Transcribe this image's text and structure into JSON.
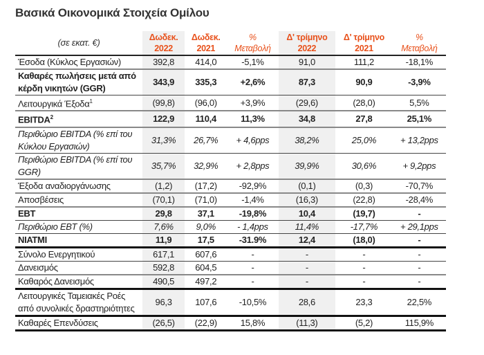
{
  "title": "Βασικά Οικονομικά Στοιχεία Ομίλου",
  "header": {
    "unit": "(σε εκατ. €)",
    "columns": [
      {
        "line1": "Δωδεκ.",
        "line2": "2022"
      },
      {
        "line1": "Δωδεκ.",
        "line2": "2021"
      },
      {
        "line1": "%",
        "line2": "Μεταβολή"
      },
      {
        "line1": "Δ' τρίμηνο",
        "line2": "2022"
      },
      {
        "line1": "Δ' τρίμηνο",
        "line2": "2021"
      },
      {
        "line1": "%",
        "line2": "Μεταβολή"
      }
    ]
  },
  "colors": {
    "accent": "#e8501a",
    "shade": "#f0f0f0"
  },
  "rows": [
    {
      "label": "Έσοδα (Κύκλος Εργασιών)",
      "values": [
        "392,8",
        "414,0",
        "-5,1%",
        "91,0",
        "111,2",
        "-18,1%"
      ],
      "style": "",
      "line": "l-gray"
    },
    {
      "label": "Καθαρές πωλήσεις μετά από κέρδη νικητών (GGR)",
      "values": [
        "343,9",
        "335,3",
        "+2,6%",
        "87,3",
        "90,9",
        "-3,9%"
      ],
      "style": "b",
      "line": "l-thin"
    },
    {
      "label": "Λειτουργικά Έξοδα",
      "sup": "1",
      "values": [
        "(99,8)",
        "(96,0)",
        "+3,9%",
        "(29,6)",
        "(28,0)",
        "5,5%"
      ],
      "style": "",
      "line": "l-gray"
    },
    {
      "label": "EBITDA",
      "sup": "2",
      "values": [
        "122,9",
        "110,4",
        "11,3%",
        "34,8",
        "27,8",
        "25,1%"
      ],
      "style": "b",
      "line": "l-gray"
    },
    {
      "label": "Περιθώριο EBITDA (% επί του Κύκλου Εργασιών)",
      "values": [
        "31,3%",
        "26,7%",
        "+ 4,6pps",
        "38,2%",
        "25,0%",
        "+ 13,2pps"
      ],
      "style": "i",
      "line": "l-thin"
    },
    {
      "label": "Περιθώριο EBITDA (% επί του GGR)",
      "values": [
        "35,7%",
        "32,9%",
        "+ 2,8pps",
        "39,9%",
        "30,6%",
        "+ 9,2pps"
      ],
      "style": "i",
      "line": "l-gray"
    },
    {
      "label": "Έξοδα αναδιοργάνωσης",
      "values": [
        "(1,2)",
        "(17,2)",
        "-92,9%",
        "(0,1)",
        "(0,3)",
        "-70,7%"
      ],
      "style": "",
      "line": "l-gray"
    },
    {
      "label": "Αποσβέσεις",
      "values": [
        "(70,1)",
        "(71,0)",
        "-1,4%",
        "(16,3)",
        "(22,8)",
        "-28,4%"
      ],
      "style": "",
      "line": "l-gray"
    },
    {
      "label": "EBT",
      "values": [
        "29,8",
        "37,1",
        "-19,8%",
        "10,4",
        "(19,7)",
        "-"
      ],
      "style": "b",
      "line": "l-thin"
    },
    {
      "label": "Περιθώριο EBT (%)",
      "values": [
        "7,6%",
        "9,0%",
        "- 1,4pps",
        "11,4%",
        "-17,7%",
        "+ 29,1pps"
      ],
      "style": "i",
      "line": "l-thin"
    },
    {
      "label": "ΝΙΑΤΜΙ",
      "values": [
        "11,9",
        "17,5",
        "-31.9%",
        "12,4",
        "(18,0)",
        "-"
      ],
      "style": "b",
      "line": "l-thick"
    },
    {
      "label": "Σύνολο Ενεργητικού",
      "values": [
        "617,1",
        "607,6",
        "-",
        "-",
        "-",
        "-"
      ],
      "style": "",
      "line": "l-thin"
    },
    {
      "label": "Δανεισμός",
      "values": [
        "592,8",
        "604,5",
        "-",
        "-",
        "-",
        "-"
      ],
      "style": "",
      "line": "l-gray"
    },
    {
      "label": "Καθαρός Δανεισμός",
      "values": [
        "490,5",
        "497,2",
        "-",
        "-",
        "-",
        "-"
      ],
      "style": "",
      "line": "l-thick"
    },
    {
      "label": "Λειτουργικές Ταμειακές Ροές από συνολικές δραστηριότητες",
      "values": [
        "96,3",
        "107,6",
        "-10,5%",
        "28,6",
        "23,3",
        "22,5%"
      ],
      "style": "",
      "line": "l-thick"
    },
    {
      "label": "Καθαρές Επενδύσεις",
      "values": [
        "(26,5)",
        "(22,9)",
        "15,8%",
        "(11,3)",
        "(5,2)",
        "115,9%"
      ],
      "style": "",
      "line": "l-thick"
    }
  ]
}
